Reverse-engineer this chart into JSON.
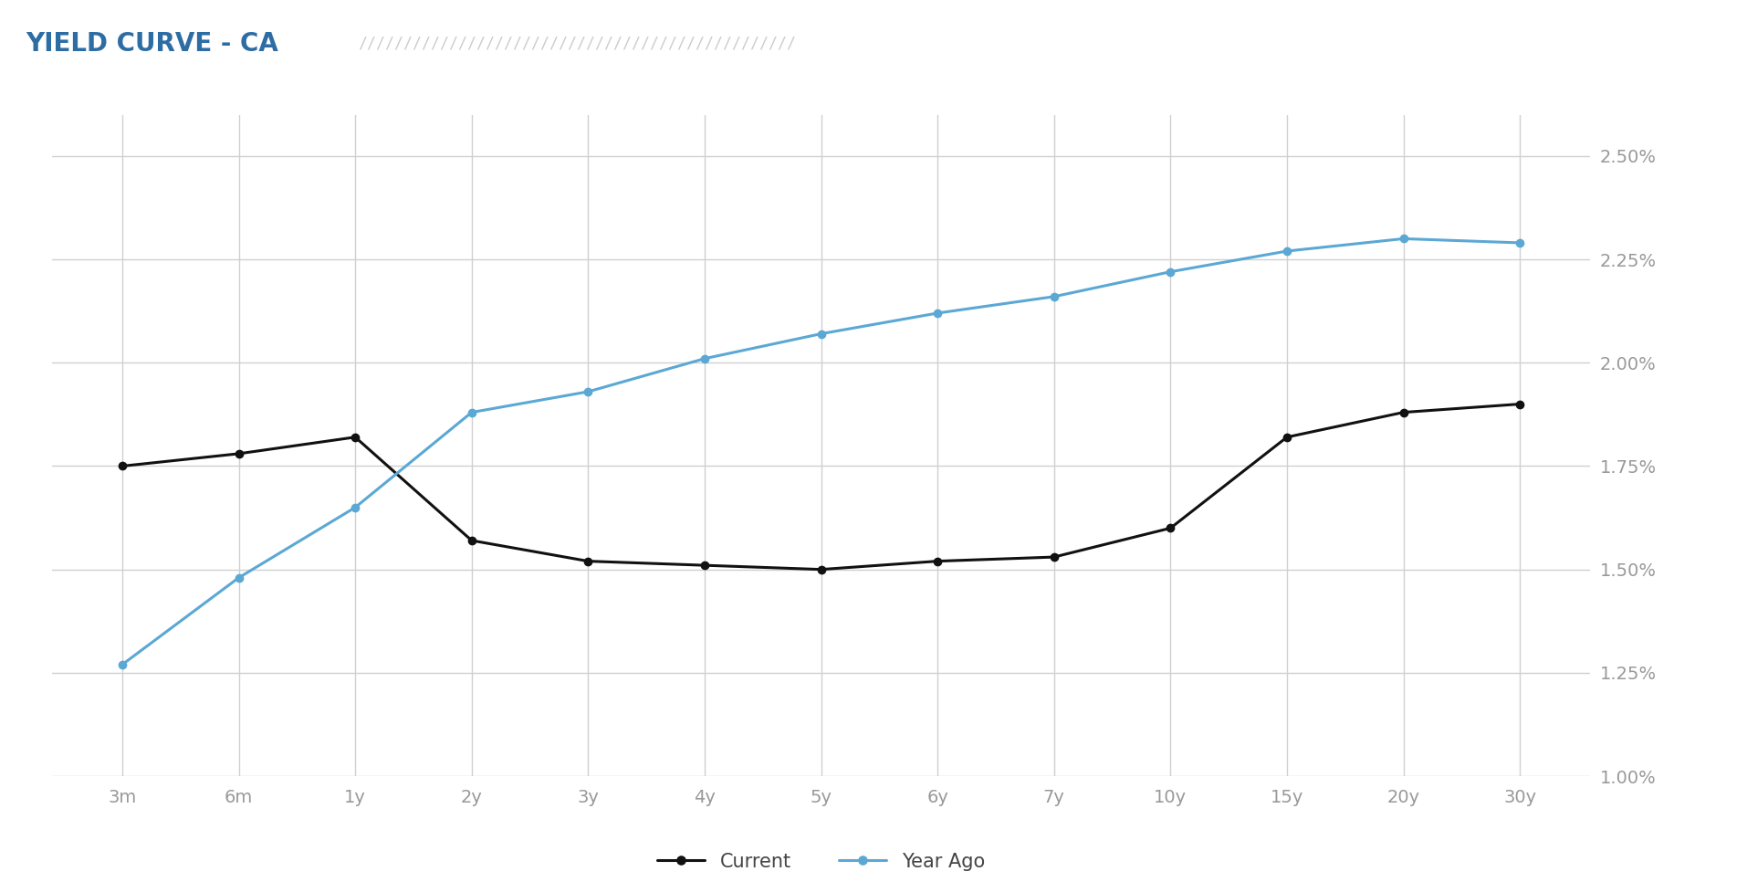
{
  "title": "YIELD CURVE - CA",
  "title_color": "#2E6DA4",
  "background_color": "#ffffff",
  "x_labels": [
    "3m",
    "6m",
    "1y",
    "2y",
    "3y",
    "4y",
    "5y",
    "6y",
    "7y",
    "10y",
    "15y",
    "20y",
    "30y"
  ],
  "x_positions": [
    0,
    1,
    2,
    3,
    4,
    5,
    6,
    7,
    8,
    9,
    10,
    11,
    12
  ],
  "current_values": [
    1.75,
    1.78,
    1.82,
    1.57,
    1.52,
    1.51,
    1.5,
    1.52,
    1.53,
    1.6,
    1.82,
    1.88,
    1.9
  ],
  "year_ago_values": [
    1.27,
    1.48,
    1.65,
    1.88,
    1.93,
    2.01,
    2.07,
    2.12,
    2.16,
    2.22,
    2.27,
    2.3,
    2.29
  ],
  "current_color": "#111111",
  "year_ago_color": "#5BA8D4",
  "ylim": [
    1.0,
    2.6
  ],
  "yticks": [
    1.0,
    1.25,
    1.5,
    1.75,
    2.0,
    2.25,
    2.5
  ],
  "grid_color": "#d0d0d0",
  "marker_size": 6,
  "line_width": 2.2,
  "legend_current": "Current",
  "legend_year_ago": "Year Ago",
  "tick_label_color": "#999999",
  "title_fontsize": 20,
  "tick_fontsize": 14,
  "legend_fontsize": 15,
  "hatch_text": "////////////////////////////////////////////////",
  "hatch_color": "#cccccc"
}
